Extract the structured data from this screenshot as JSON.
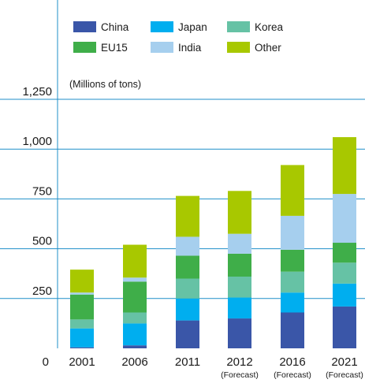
{
  "chart_data": {
    "type": "bar",
    "stacked": true,
    "unit_label": "(Millions of tons)",
    "categories": [
      "2001",
      "2006",
      "2011",
      "2012",
      "2016",
      "2021"
    ],
    "category_sublabels": [
      "",
      "",
      "",
      "(Forecast)",
      "(Forecast)",
      "(Forecast)"
    ],
    "y_ticks": [
      0,
      250,
      500,
      750,
      1000,
      1250
    ],
    "y_tick_labels": [
      "0",
      "250",
      "500",
      "750",
      "1,000",
      "1,250"
    ],
    "ylim": [
      0,
      1250
    ],
    "grid": true,
    "legend_position": "top",
    "series": [
      {
        "name": "China",
        "color": "#3a56a8",
        "values": [
          5,
          15,
          140,
          150,
          180,
          210
        ]
      },
      {
        "name": "Japan",
        "color": "#00aeef",
        "values": [
          95,
          110,
          110,
          105,
          100,
          115
        ]
      },
      {
        "name": "Korea",
        "color": "#66c2a5",
        "values": [
          45,
          55,
          100,
          105,
          105,
          105
        ]
      },
      {
        "name": "EU15",
        "color": "#3fae49",
        "values": [
          125,
          155,
          115,
          115,
          110,
          100
        ]
      },
      {
        "name": "India",
        "color": "#a6cfee",
        "values": [
          10,
          20,
          95,
          100,
          170,
          245
        ]
      },
      {
        "name": "Other",
        "color": "#a8c800",
        "values": [
          115,
          165,
          205,
          215,
          255,
          285
        ]
      }
    ]
  }
}
